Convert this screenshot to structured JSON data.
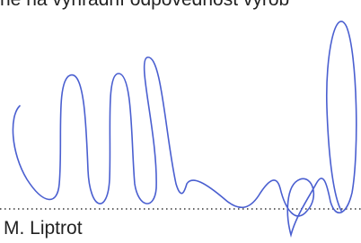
{
  "document": {
    "header_fragment": "ne na výhradní odpovědnost výrob",
    "signatory": "M. Liptrot"
  }
}
